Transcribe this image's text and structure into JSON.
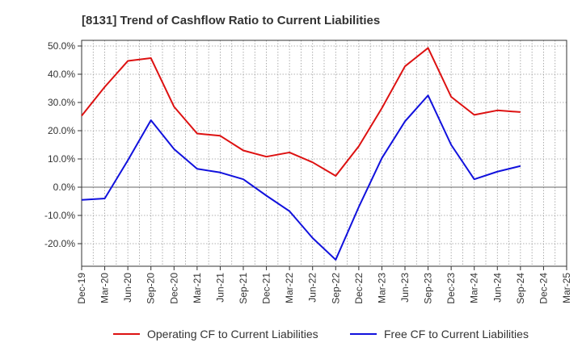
{
  "chart_data": {
    "type": "line",
    "title": "[8131]  Trend of Cashflow Ratio to Current Liabilities",
    "x_labels": [
      "Dec-19",
      "Mar-20",
      "Jun-20",
      "Sep-20",
      "Dec-20",
      "Mar-21",
      "Jun-21",
      "Sep-21",
      "Dec-21",
      "Mar-22",
      "Jun-22",
      "Sep-22",
      "Dec-22",
      "Mar-23",
      "Jun-23",
      "Sep-23",
      "Dec-23",
      "Mar-24",
      "Jun-24",
      "Sep-24",
      "Dec-24",
      "Mar-25"
    ],
    "y_ticks": [
      50,
      40,
      30,
      20,
      10,
      0,
      -10,
      -20
    ],
    "y_tick_labels": [
      "50.0%",
      "40.0%",
      "30.0%",
      "20.0%",
      "10.0%",
      "0.0%",
      "-10.0%",
      "-20.0%"
    ],
    "ylim": [
      -28,
      52
    ],
    "grid": true,
    "legend_position": "bottom",
    "series": [
      {
        "name": "Operating CF to Current Liabilities",
        "color": "#dd1111",
        "values": [
          25.3,
          35.5,
          44.7,
          45.7,
          28.5,
          19.0,
          18.2,
          13.0,
          10.8,
          12.3,
          8.8,
          4.0,
          14.5,
          28.0,
          42.8,
          49.3,
          32.0,
          25.6,
          27.2,
          26.6,
          null,
          null
        ]
      },
      {
        "name": "Free CF to Current Liabilities",
        "color": "#1111dd",
        "values": [
          -4.5,
          -4.0,
          9.5,
          23.7,
          13.5,
          6.5,
          5.2,
          2.8,
          -3.0,
          -8.5,
          -18.0,
          -25.7,
          -7.0,
          10.3,
          23.3,
          32.5,
          15.0,
          2.8,
          5.5,
          7.5,
          null,
          null
        ]
      }
    ]
  }
}
